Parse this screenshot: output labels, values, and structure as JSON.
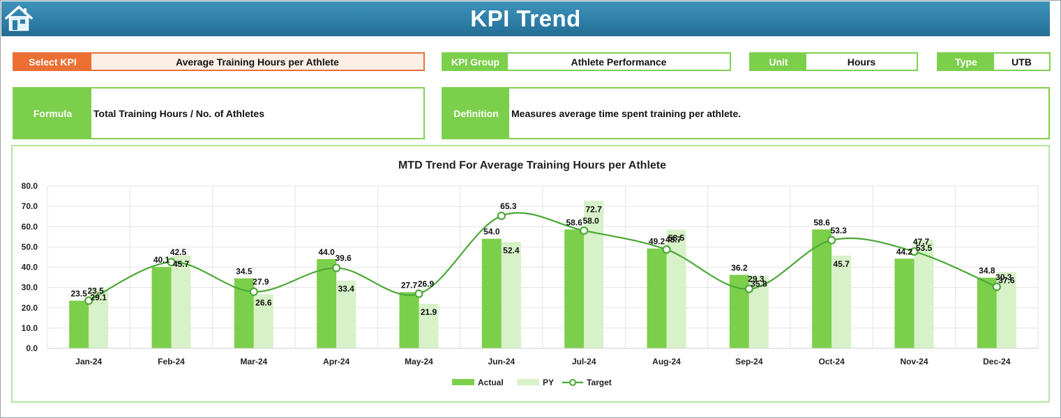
{
  "header": {
    "title": "KPI Trend",
    "home_icon": "home-icon"
  },
  "select_kpi": {
    "label": "Select KPI",
    "value": "Average Training Hours per Athlete"
  },
  "kpi_group": {
    "label": "KPI Group",
    "value": "Athlete Performance"
  },
  "unit": {
    "label": "Unit",
    "value": "Hours"
  },
  "type": {
    "label": "Type",
    "value": "UTB"
  },
  "formula": {
    "label": "Formula",
    "value": "Total Training Hours / No. of Athletes"
  },
  "definition": {
    "label": "Definition",
    "value": "Measures average time spent training per athlete."
  },
  "colors": {
    "actual": "#7ccf4b",
    "py": "#d7f1c8",
    "target": "#4aa835",
    "accent_orange": "#ec6f33",
    "header": "#2d7da6"
  },
  "chart_data": {
    "type": "bar",
    "title": "MTD Trend For Average Training Hours per Athlete",
    "categories": [
      "Jan-24",
      "Feb-24",
      "Mar-24",
      "Apr-24",
      "May-24",
      "Jun-24",
      "Jul-24",
      "Aug-24",
      "Sep-24",
      "Oct-24",
      "Nov-24",
      "Dec-24"
    ],
    "series": [
      {
        "name": "Actual",
        "kind": "bar",
        "values": [
          23.5,
          40.1,
          34.5,
          44.0,
          27.7,
          54.0,
          58.6,
          49.2,
          36.2,
          58.6,
          44.2,
          34.8
        ]
      },
      {
        "name": "PY",
        "kind": "bar",
        "values": [
          29.1,
          45.7,
          26.6,
          33.4,
          21.9,
          52.4,
          72.7,
          58.5,
          35.8,
          45.7,
          53.5,
          37.6
        ]
      },
      {
        "name": "Target",
        "kind": "line",
        "values": [
          23.5,
          42.5,
          27.9,
          39.6,
          26.9,
          65.3,
          58.0,
          48.7,
          29.3,
          53.3,
          47.7,
          30.3
        ]
      }
    ],
    "yticks": [
      "0.0",
      "10.0",
      "20.0",
      "30.0",
      "40.0",
      "50.0",
      "60.0",
      "70.0",
      "80.0"
    ],
    "ylim": [
      0,
      80
    ],
    "legend": [
      "Actual",
      "PY",
      "Target"
    ],
    "legend_position": "bottom"
  }
}
